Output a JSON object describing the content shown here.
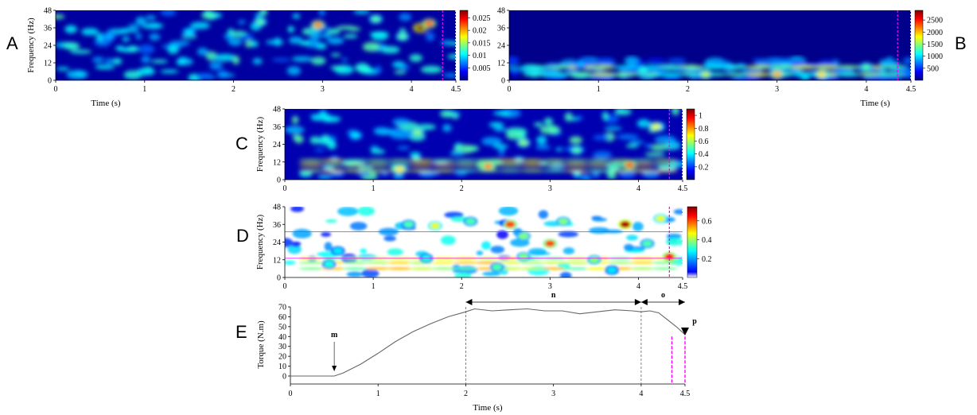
{
  "panel_letters": [
    "A",
    "B",
    "C",
    "D",
    "E"
  ],
  "colors": {
    "jet": [
      "#00007f",
      "#0000ff",
      "#007fff",
      "#00ffff",
      "#7fff7f",
      "#ffff00",
      "#ff7f00",
      "#ff0000",
      "#7f0000"
    ],
    "marker": "#ff00ff",
    "torque_line": "#666666",
    "dashed_line": "#666666"
  },
  "chart_data": [
    {
      "id": "A",
      "type": "heatmap",
      "ylabel": "Frequency (Hz)",
      "xlabel": "Time (s)",
      "x_ticks": [
        "0",
        "1",
        "2",
        "3",
        "4",
        "4.5"
      ],
      "y_ticks": [
        "0",
        "12",
        "24",
        "36",
        "48"
      ],
      "xlim": [
        0,
        4.5
      ],
      "ylim": [
        0,
        48
      ],
      "colorbar": {
        "ticks": [
          "0.025",
          "0.02",
          "0.015",
          "0.01",
          "0.005"
        ],
        "range": [
          0,
          0.028
        ]
      },
      "marker_times": [
        4.35
      ],
      "hotspots": [
        {
          "t": 4.1,
          "f": 36,
          "v": 1.0
        },
        {
          "t": 4.2,
          "f": 39,
          "v": 0.8
        },
        {
          "t": 2.95,
          "f": 38,
          "v": 0.75
        },
        {
          "t": 2.3,
          "f": 40,
          "v": 0.45
        },
        {
          "t": 3.6,
          "f": 42,
          "v": 0.45
        },
        {
          "t": 1.5,
          "f": 33,
          "v": 0.35
        },
        {
          "t": 0.6,
          "f": 30,
          "v": 0.3
        },
        {
          "t": 3.9,
          "f": 30,
          "v": 0.45
        }
      ]
    },
    {
      "id": "B",
      "type": "heatmap",
      "ylabel": "",
      "xlabel": "Time (s)",
      "x_ticks": [
        "0",
        "1",
        "2",
        "3",
        "4",
        "4.5"
      ],
      "y_ticks": [
        "0",
        "12",
        "24",
        "36",
        "48"
      ],
      "xlim": [
        0,
        4.5
      ],
      "ylim": [
        0,
        48
      ],
      "colorbar": {
        "ticks": [
          "2500",
          "2000",
          "1500",
          "1000",
          "500"
        ],
        "range": [
          0,
          2900
        ]
      },
      "marker_times": [
        4.35
      ],
      "hotspots": [
        {
          "t": 3.0,
          "f": 4,
          "v": 0.7
        },
        {
          "t": 3.5,
          "f": 4,
          "v": 0.65
        },
        {
          "t": 2.2,
          "f": 4,
          "v": 0.55
        },
        {
          "t": 1.5,
          "f": 7,
          "v": 0.4
        },
        {
          "t": 4.0,
          "f": 9,
          "v": 0.45
        },
        {
          "t": 0.8,
          "f": 11,
          "v": 0.3
        }
      ]
    },
    {
      "id": "C",
      "type": "heatmap",
      "ylabel": "Frequency (Hz)",
      "xlabel": "",
      "x_ticks": [
        "0",
        "1",
        "2",
        "3",
        "4",
        "4.5"
      ],
      "y_ticks": [
        "0",
        "12",
        "24",
        "36",
        "48"
      ],
      "xlim": [
        0,
        4.5
      ],
      "ylim": [
        0,
        48
      ],
      "colorbar": {
        "ticks": [
          "1",
          "0.8",
          "0.6",
          "0.4",
          "0.2"
        ],
        "range": [
          0,
          1.1
        ]
      },
      "marker_times": [
        4.35
      ],
      "hotspots": [
        {
          "t": 2.3,
          "f": 9,
          "v": 0.75
        },
        {
          "t": 3.9,
          "f": 10,
          "v": 0.8
        },
        {
          "t": 1.3,
          "f": 7,
          "v": 0.65
        },
        {
          "t": 4.2,
          "f": 36,
          "v": 0.6
        },
        {
          "t": 2.7,
          "f": 25,
          "v": 0.5
        },
        {
          "t": 1.5,
          "f": 32,
          "v": 0.5
        },
        {
          "t": 3.3,
          "f": 20,
          "v": 0.45
        },
        {
          "t": 0.8,
          "f": 30,
          "v": 0.35
        }
      ]
    },
    {
      "id": "D",
      "type": "heatmap",
      "ylabel": "Frequency (Hz)",
      "xlabel": "",
      "x_ticks": [
        "0",
        "1",
        "2",
        "3",
        "4",
        "4.5"
      ],
      "y_ticks": [
        "0",
        "12",
        "24",
        "36",
        "48"
      ],
      "xlim": [
        0,
        4.5
      ],
      "ylim": [
        0,
        48
      ],
      "colorbar": {
        "ticks": [
          "0.6",
          "0.4",
          "0.2"
        ],
        "range": [
          0,
          0.75
        ]
      },
      "marker_times": [
        4.35
      ],
      "band_lines_hz": [
        31,
        13
      ],
      "hotspots": [
        {
          "t": 3.85,
          "f": 36,
          "v": 0.95
        },
        {
          "t": 2.55,
          "f": 36,
          "v": 0.8
        },
        {
          "t": 3.0,
          "f": 23,
          "v": 0.8
        },
        {
          "t": 4.35,
          "f": 14,
          "v": 0.85
        },
        {
          "t": 1.7,
          "f": 35,
          "v": 0.6
        },
        {
          "t": 4.25,
          "f": 40,
          "v": 0.6
        },
        {
          "t": 3.15,
          "f": 38,
          "v": 0.5
        },
        {
          "t": 1.4,
          "f": 36,
          "v": 0.45
        },
        {
          "t": 2.1,
          "f": 38,
          "v": 0.45
        },
        {
          "t": 2.7,
          "f": 28,
          "v": 0.5
        },
        {
          "t": 3.5,
          "f": 12,
          "v": 0.5
        },
        {
          "t": 0.6,
          "f": 18,
          "v": 0.35
        },
        {
          "t": 1.6,
          "f": 13,
          "v": 0.4
        },
        {
          "t": 2.7,
          "f": 14,
          "v": 0.5
        },
        {
          "t": 4.1,
          "f": 23,
          "v": 0.45
        },
        {
          "t": 0.5,
          "f": 9,
          "v": 0.4
        },
        {
          "t": 2.4,
          "f": 7,
          "v": 0.45
        },
        {
          "t": 3.7,
          "f": 5,
          "v": 0.35
        }
      ]
    },
    {
      "id": "E",
      "type": "line",
      "ylabel": "Torque (N.m)",
      "xlabel": "Time (s)",
      "x_ticks": [
        "0",
        "1",
        "2",
        "3",
        "4",
        "4.5"
      ],
      "y_ticks": [
        "0",
        "10",
        "20",
        "30",
        "40",
        "50",
        "60",
        "70"
      ],
      "xlim": [
        0,
        4.5
      ],
      "ylim": [
        0,
        70
      ],
      "x": [
        0,
        0.5,
        0.6,
        0.8,
        1.0,
        1.2,
        1.4,
        1.6,
        1.8,
        2.0,
        2.1,
        2.3,
        2.5,
        2.7,
        2.9,
        3.1,
        3.3,
        3.5,
        3.7,
        3.9,
        4.0,
        4.1,
        4.2,
        4.3,
        4.4,
        4.5
      ],
      "y": [
        0,
        0,
        3,
        12,
        23,
        35,
        45,
        53,
        60,
        65,
        68,
        66,
        67,
        68,
        66,
        66,
        63,
        65,
        67,
        66,
        65,
        66,
        64,
        57,
        50,
        42
      ],
      "dashed_times": [
        2,
        4
      ],
      "marker_times": [
        4.35,
        4.5
      ],
      "annotations": {
        "m": "m",
        "n": "n",
        "o": "o",
        "p": "p"
      },
      "m_time": 0.5,
      "n_range": [
        2,
        4
      ],
      "o_range": [
        4,
        4.5
      ]
    }
  ]
}
